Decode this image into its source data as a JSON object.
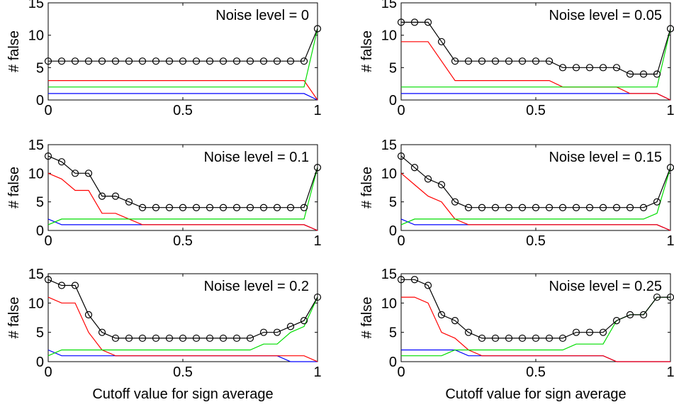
{
  "chart_data": [
    {
      "type": "line",
      "title": "Noise level = 0",
      "ylabel": "# false",
      "xlabel": "",
      "xlim": [
        0,
        1
      ],
      "ylim": [
        0,
        15
      ],
      "x_ticks": [
        "0",
        "0.5",
        "1"
      ],
      "y_ticks": [
        "0",
        "5",
        "10",
        "15"
      ],
      "x": [
        0,
        0.05,
        0.1,
        0.15,
        0.2,
        0.25,
        0.3,
        0.35,
        0.4,
        0.45,
        0.5,
        0.55,
        0.6,
        0.65,
        0.7,
        0.75,
        0.8,
        0.85,
        0.9,
        0.95,
        1
      ],
      "series": [
        {
          "color": "#0000ff",
          "values": [
            1,
            1,
            1,
            1,
            1,
            1,
            1,
            1,
            1,
            1,
            1,
            1,
            1,
            1,
            1,
            1,
            1,
            1,
            1,
            1,
            0
          ],
          "markers": false
        },
        {
          "color": "#ff0000",
          "values": [
            3,
            3,
            3,
            3,
            3,
            3,
            3,
            3,
            3,
            3,
            3,
            3,
            3,
            3,
            3,
            3,
            3,
            3,
            3,
            3,
            0
          ],
          "markers": false
        },
        {
          "color": "#00dd00",
          "values": [
            2,
            2,
            2,
            2,
            2,
            2,
            2,
            2,
            2,
            2,
            2,
            2,
            2,
            2,
            2,
            2,
            2,
            2,
            2,
            2,
            11
          ],
          "markers": false
        },
        {
          "color": "#000000",
          "values": [
            6,
            6,
            6,
            6,
            6,
            6,
            6,
            6,
            6,
            6,
            6,
            6,
            6,
            6,
            6,
            6,
            6,
            6,
            6,
            6,
            11
          ],
          "markers": true
        }
      ]
    },
    {
      "type": "line",
      "title": "Noise level = 0.05",
      "ylabel": "# false",
      "xlabel": "",
      "xlim": [
        0,
        1
      ],
      "ylim": [
        0,
        15
      ],
      "x_ticks": [
        "0",
        "0.5",
        "1"
      ],
      "y_ticks": [
        "0",
        "5",
        "10",
        "15"
      ],
      "x": [
        0,
        0.05,
        0.1,
        0.15,
        0.2,
        0.25,
        0.3,
        0.35,
        0.4,
        0.45,
        0.5,
        0.55,
        0.6,
        0.65,
        0.7,
        0.75,
        0.8,
        0.85,
        0.9,
        0.95,
        1
      ],
      "series": [
        {
          "color": "#0000ff",
          "values": [
            1,
            1,
            1,
            1,
            1,
            1,
            1,
            1,
            1,
            1,
            1,
            1,
            1,
            1,
            1,
            1,
            1,
            1,
            1,
            1,
            0
          ],
          "markers": false
        },
        {
          "color": "#ff0000",
          "values": [
            9,
            9,
            9,
            6,
            3,
            3,
            3,
            3,
            3,
            3,
            3,
            3,
            2,
            2,
            2,
            2,
            2,
            1,
            1,
            1,
            0
          ],
          "markers": false
        },
        {
          "color": "#00dd00",
          "values": [
            2,
            2,
            2,
            2,
            2,
            2,
            2,
            2,
            2,
            2,
            2,
            2,
            2,
            2,
            2,
            2,
            2,
            2,
            2,
            2,
            11
          ],
          "markers": false
        },
        {
          "color": "#000000",
          "values": [
            12,
            12,
            12,
            9,
            6,
            6,
            6,
            6,
            6,
            6,
            6,
            6,
            5,
            5,
            5,
            5,
            5,
            4,
            4,
            4,
            11
          ],
          "markers": true
        }
      ]
    },
    {
      "type": "line",
      "title": "Noise level = 0.1",
      "ylabel": "# false",
      "xlabel": "",
      "xlim": [
        0,
        1
      ],
      "ylim": [
        0,
        15
      ],
      "x_ticks": [
        "0",
        "0.5",
        "1"
      ],
      "y_ticks": [
        "0",
        "5",
        "10",
        "15"
      ],
      "x": [
        0,
        0.05,
        0.1,
        0.15,
        0.2,
        0.25,
        0.3,
        0.35,
        0.4,
        0.45,
        0.5,
        0.55,
        0.6,
        0.65,
        0.7,
        0.75,
        0.8,
        0.85,
        0.9,
        0.95,
        1
      ],
      "series": [
        {
          "color": "#0000ff",
          "values": [
            2,
            1,
            1,
            1,
            1,
            1,
            1,
            1,
            1,
            1,
            1,
            1,
            1,
            1,
            1,
            1,
            1,
            1,
            1,
            1,
            0
          ],
          "markers": false
        },
        {
          "color": "#ff0000",
          "values": [
            10,
            9,
            7,
            7,
            3,
            3,
            2,
            1,
            1,
            1,
            1,
            1,
            1,
            1,
            1,
            1,
            1,
            1,
            1,
            1,
            0
          ],
          "markers": false
        },
        {
          "color": "#00dd00",
          "values": [
            1,
            2,
            2,
            2,
            2,
            2,
            2,
            2,
            2,
            2,
            2,
            2,
            2,
            2,
            2,
            2,
            2,
            2,
            2,
            2,
            11
          ],
          "markers": false
        },
        {
          "color": "#000000",
          "values": [
            13,
            12,
            10,
            10,
            6,
            6,
            5,
            4,
            4,
            4,
            4,
            4,
            4,
            4,
            4,
            4,
            4,
            4,
            4,
            4,
            11
          ],
          "markers": true
        }
      ]
    },
    {
      "type": "line",
      "title": "Noise level = 0.15",
      "ylabel": "# false",
      "xlabel": "",
      "xlim": [
        0,
        1
      ],
      "ylim": [
        0,
        15
      ],
      "x_ticks": [
        "0",
        "0.5",
        "1"
      ],
      "y_ticks": [
        "0",
        "5",
        "10",
        "15"
      ],
      "x": [
        0,
        0.05,
        0.1,
        0.15,
        0.2,
        0.25,
        0.3,
        0.35,
        0.4,
        0.45,
        0.5,
        0.55,
        0.6,
        0.65,
        0.7,
        0.75,
        0.8,
        0.85,
        0.9,
        0.95,
        1
      ],
      "series": [
        {
          "color": "#0000ff",
          "values": [
            2,
            1,
            1,
            1,
            1,
            1,
            1,
            1,
            1,
            1,
            1,
            1,
            1,
            1,
            1,
            1,
            1,
            1,
            1,
            1,
            0
          ],
          "markers": false
        },
        {
          "color": "#ff0000",
          "values": [
            10,
            8,
            6,
            5,
            2,
            1,
            1,
            1,
            1,
            1,
            1,
            1,
            1,
            1,
            1,
            1,
            1,
            1,
            1,
            1,
            0
          ],
          "markers": false
        },
        {
          "color": "#00dd00",
          "values": [
            1,
            2,
            2,
            2,
            2,
            2,
            2,
            2,
            2,
            2,
            2,
            2,
            2,
            2,
            2,
            2,
            2,
            2,
            2,
            3,
            11
          ],
          "markers": false
        },
        {
          "color": "#000000",
          "values": [
            13,
            11,
            9,
            8,
            5,
            4,
            4,
            4,
            4,
            4,
            4,
            4,
            4,
            4,
            4,
            4,
            4,
            4,
            4,
            5,
            11
          ],
          "markers": true
        }
      ]
    },
    {
      "type": "line",
      "title": "Noise level = 0.2",
      "ylabel": "# false",
      "xlabel": "Cutoff value for sign average",
      "xlim": [
        0,
        1
      ],
      "ylim": [
        0,
        15
      ],
      "x_ticks": [
        "0",
        "0.5",
        "1"
      ],
      "y_ticks": [
        "0",
        "5",
        "10",
        "15"
      ],
      "x": [
        0,
        0.05,
        0.1,
        0.15,
        0.2,
        0.25,
        0.3,
        0.35,
        0.4,
        0.45,
        0.5,
        0.55,
        0.6,
        0.65,
        0.7,
        0.75,
        0.8,
        0.85,
        0.9,
        0.95,
        1
      ],
      "series": [
        {
          "color": "#0000ff",
          "values": [
            2,
            1,
            1,
            1,
            1,
            1,
            1,
            1,
            1,
            1,
            1,
            1,
            1,
            1,
            1,
            1,
            1,
            1,
            0,
            0,
            0
          ],
          "markers": false
        },
        {
          "color": "#ff0000",
          "values": [
            11,
            10,
            10,
            5,
            2,
            1,
            1,
            1,
            1,
            1,
            1,
            1,
            1,
            1,
            1,
            1,
            1,
            1,
            1,
            1,
            0
          ],
          "markers": false
        },
        {
          "color": "#00dd00",
          "values": [
            1,
            2,
            2,
            2,
            2,
            2,
            2,
            2,
            2,
            2,
            2,
            2,
            2,
            2,
            2,
            2,
            3,
            3,
            5,
            6,
            11
          ],
          "markers": false
        },
        {
          "color": "#000000",
          "values": [
            14,
            13,
            13,
            8,
            5,
            4,
            4,
            4,
            4,
            4,
            4,
            4,
            4,
            4,
            4,
            4,
            5,
            5,
            6,
            7,
            11
          ],
          "markers": true
        }
      ]
    },
    {
      "type": "line",
      "title": "Noise level = 0.25",
      "ylabel": "# false",
      "xlabel": "Cutoff value for sign average",
      "xlim": [
        0,
        1
      ],
      "ylim": [
        0,
        15
      ],
      "x_ticks": [
        "0",
        "0.5",
        "1"
      ],
      "y_ticks": [
        "0",
        "5",
        "10",
        "15"
      ],
      "x": [
        0,
        0.05,
        0.1,
        0.15,
        0.2,
        0.25,
        0.3,
        0.35,
        0.4,
        0.45,
        0.5,
        0.55,
        0.6,
        0.65,
        0.7,
        0.75,
        0.8,
        0.85,
        0.9,
        0.95,
        1
      ],
      "series": [
        {
          "color": "#0000ff",
          "values": [
            2,
            2,
            2,
            2,
            2,
            1,
            1,
            1,
            1,
            1,
            1,
            1,
            1,
            1,
            1,
            1,
            0,
            0,
            0,
            0,
            0
          ],
          "markers": false
        },
        {
          "color": "#ff0000",
          "values": [
            11,
            11,
            10,
            5,
            4,
            2,
            1,
            1,
            1,
            1,
            1,
            1,
            1,
            1,
            1,
            1,
            0,
            0,
            0,
            0,
            0
          ],
          "markers": false
        },
        {
          "color": "#00dd00",
          "values": [
            1,
            1,
            1,
            1,
            2,
            2,
            2,
            2,
            2,
            2,
            2,
            2,
            2,
            3,
            3,
            3,
            7,
            8,
            8,
            11,
            11
          ],
          "markers": false
        },
        {
          "color": "#000000",
          "values": [
            14,
            14,
            13,
            8,
            7,
            5,
            4,
            4,
            4,
            4,
            4,
            4,
            4,
            5,
            5,
            5,
            7,
            8,
            8,
            11,
            11
          ],
          "markers": true
        }
      ]
    }
  ]
}
